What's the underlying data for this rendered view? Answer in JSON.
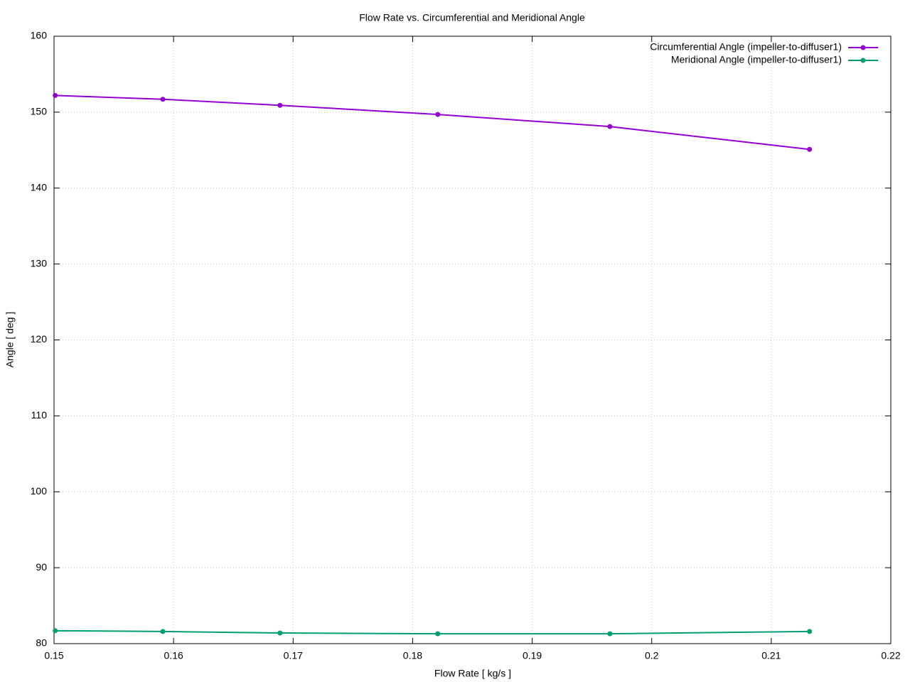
{
  "chart_data": {
    "type": "line",
    "title": "Flow Rate vs. Circumferential and Meridional Angle",
    "x_label": "Flow Rate [ kg/s ]",
    "y_label": "Angle [ deg ]",
    "x": [
      0.1501,
      0.1591,
      0.1689,
      0.1821,
      0.1965,
      0.2132
    ],
    "series": [
      {
        "name": "Circumferential Angle (impeller-to-diffuser1)",
        "color": "#9400d3",
        "values": [
          152.2,
          151.7,
          150.9,
          149.7,
          148.1,
          145.1
        ]
      },
      {
        "name": "Meridional Angle (impeller-to-diffuser1)",
        "color": "#009e73",
        "values": [
          81.7,
          81.6,
          81.4,
          81.3,
          81.3,
          81.6
        ]
      }
    ],
    "xlim": [
      0.15,
      0.22
    ],
    "xticks": [
      0.15,
      0.16,
      0.17,
      0.18,
      0.19,
      0.2,
      0.21,
      0.22
    ],
    "ylim": [
      80,
      160
    ],
    "yticks": [
      80,
      90,
      100,
      110,
      120,
      130,
      140,
      150,
      160
    ],
    "grid": true,
    "legend": "top-right"
  }
}
